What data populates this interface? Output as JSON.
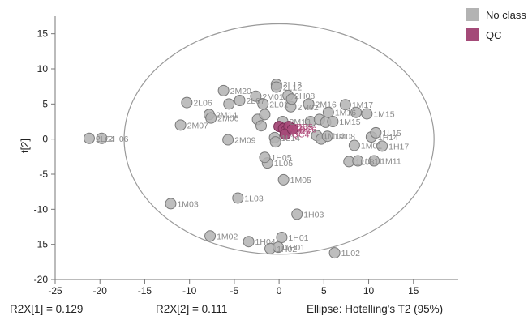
{
  "legend": [
    {
      "label": "No class",
      "color": "#b3b3b3"
    },
    {
      "label": "QC",
      "color": "#a44a78"
    }
  ],
  "footer": {
    "r2x1": "R2X[1] = 0.129",
    "r2x2": "R2X[2] = 0.111",
    "ellipse": "Ellipse: Hotelling's T2 (95%)"
  },
  "chart_data": {
    "type": "scatter",
    "ylabel": "t[2]",
    "xlabel": "",
    "xlim": [
      -25,
      20
    ],
    "ylim": [
      -20,
      17.5
    ],
    "xticks": [
      -25,
      -20,
      -15,
      -10,
      -5,
      0,
      5,
      10,
      15
    ],
    "yticks": [
      -20,
      -15,
      -10,
      -5,
      0,
      5,
      10,
      15
    ],
    "grid": false,
    "legend_position": "top-right",
    "ellipse": {
      "center": [
        0,
        0
      ],
      "rx": 17.3,
      "ry": 16.4
    },
    "series": [
      {
        "name": "No class",
        "color": "#b3b3b3",
        "points": [
          {
            "x": -21.2,
            "y": 0.1,
            "label": "2L04"
          },
          {
            "x": -19.8,
            "y": 0.1,
            "label": "2H06"
          },
          {
            "x": -12.1,
            "y": -9.2,
            "label": "1M03"
          },
          {
            "x": -11.0,
            "y": 2.0,
            "label": "2M07"
          },
          {
            "x": -10.3,
            "y": 5.2,
            "label": "2L06"
          },
          {
            "x": -7.7,
            "y": -13.8,
            "label": "1M02"
          },
          {
            "x": -7.8,
            "y": 3.5,
            "label": "2M14"
          },
          {
            "x": -7.6,
            "y": 3.0,
            "label": "2M06"
          },
          {
            "x": -6.2,
            "y": 6.9,
            "label": "2M20"
          },
          {
            "x": -5.6,
            "y": 5.0,
            "label": ""
          },
          {
            "x": -5.7,
            "y": -0.1,
            "label": "2M09"
          },
          {
            "x": -4.6,
            "y": -8.4,
            "label": "1L03"
          },
          {
            "x": -4.4,
            "y": 5.5,
            "label": "2L07"
          },
          {
            "x": -3.4,
            "y": -14.6,
            "label": "1H04"
          },
          {
            "x": -2.6,
            "y": 6.1,
            "label": "2M01"
          },
          {
            "x": -2.4,
            "y": 2.8,
            "label": ""
          },
          {
            "x": -2.0,
            "y": 1.9,
            "label": ""
          },
          {
            "x": -1.8,
            "y": 5.0,
            "label": "2L01"
          },
          {
            "x": -1.6,
            "y": 3.5,
            "label": ""
          },
          {
            "x": -1.3,
            "y": -3.4,
            "label": "1L05"
          },
          {
            "x": -1.6,
            "y": -2.6,
            "label": "1H05"
          },
          {
            "x": -1.0,
            "y": -15.6,
            "label": "1H02"
          },
          {
            "x": -0.5,
            "y": 0.2,
            "label": "1L14"
          },
          {
            "x": -0.4,
            "y": -0.4,
            "label": ""
          },
          {
            "x": -0.3,
            "y": 7.8,
            "label": "2L13"
          },
          {
            "x": -0.3,
            "y": 7.4,
            "label": "2L12"
          },
          {
            "x": -0.1,
            "y": -15.4,
            "label": "1H01"
          },
          {
            "x": 0.3,
            "y": -14.0,
            "label": "1H01"
          },
          {
            "x": 0.4,
            "y": 2.5,
            "label": "2M13"
          },
          {
            "x": 0.5,
            "y": -5.8,
            "label": "1M05"
          },
          {
            "x": 1.0,
            "y": 6.2,
            "label": "2H08"
          },
          {
            "x": 1.3,
            "y": 4.6,
            "label": "2M02"
          },
          {
            "x": 1.4,
            "y": 5.7,
            "label": ""
          },
          {
            "x": 2.0,
            "y": -10.7,
            "label": "1H03"
          },
          {
            "x": 3.3,
            "y": 5.0,
            "label": "2M16"
          },
          {
            "x": 3.5,
            "y": 2.5,
            "label": ""
          },
          {
            "x": 4.2,
            "y": 0.5,
            "label": "1M14"
          },
          {
            "x": 4.5,
            "y": 2.8,
            "label": ""
          },
          {
            "x": 4.7,
            "y": 0.0,
            "label": ""
          },
          {
            "x": 5.2,
            "y": 2.4,
            "label": ""
          },
          {
            "x": 5.4,
            "y": 0.4,
            "label": "1M08"
          },
          {
            "x": 5.5,
            "y": 3.8,
            "label": "1M16"
          },
          {
            "x": 6.0,
            "y": 2.5,
            "label": "1M15"
          },
          {
            "x": 6.2,
            "y": -16.2,
            "label": "1L02"
          },
          {
            "x": 7.4,
            "y": 4.9,
            "label": "1M17"
          },
          {
            "x": 7.8,
            "y": -3.2,
            "label": "1L08"
          },
          {
            "x": 8.6,
            "y": 3.8,
            "label": ""
          },
          {
            "x": 8.4,
            "y": -0.9,
            "label": "1M01"
          },
          {
            "x": 8.8,
            "y": -3.1,
            "label": "1L11"
          },
          {
            "x": 9.8,
            "y": 3.6,
            "label": "1M15"
          },
          {
            "x": 10.3,
            "y": 0.3,
            "label": "1H14"
          },
          {
            "x": 10.6,
            "y": -3.1,
            "label": "1M11"
          },
          {
            "x": 10.8,
            "y": 0.9,
            "label": "1L15"
          },
          {
            "x": 11.5,
            "y": -1.0,
            "label": "1H17"
          }
        ]
      },
      {
        "name": "QC",
        "color": "#a44a78",
        "points": [
          {
            "x": 0.0,
            "y": 1.8,
            "label": "QC1"
          },
          {
            "x": 0.5,
            "y": 1.5,
            "label": "QC2"
          },
          {
            "x": 0.8,
            "y": 1.2,
            "label": "QC3"
          },
          {
            "x": 1.1,
            "y": 1.8,
            "label": "QC5"
          },
          {
            "x": 0.7,
            "y": 0.7,
            "label": "QC4"
          },
          {
            "x": 1.5,
            "y": 1.4,
            "label": "QC6"
          }
        ]
      }
    ]
  }
}
